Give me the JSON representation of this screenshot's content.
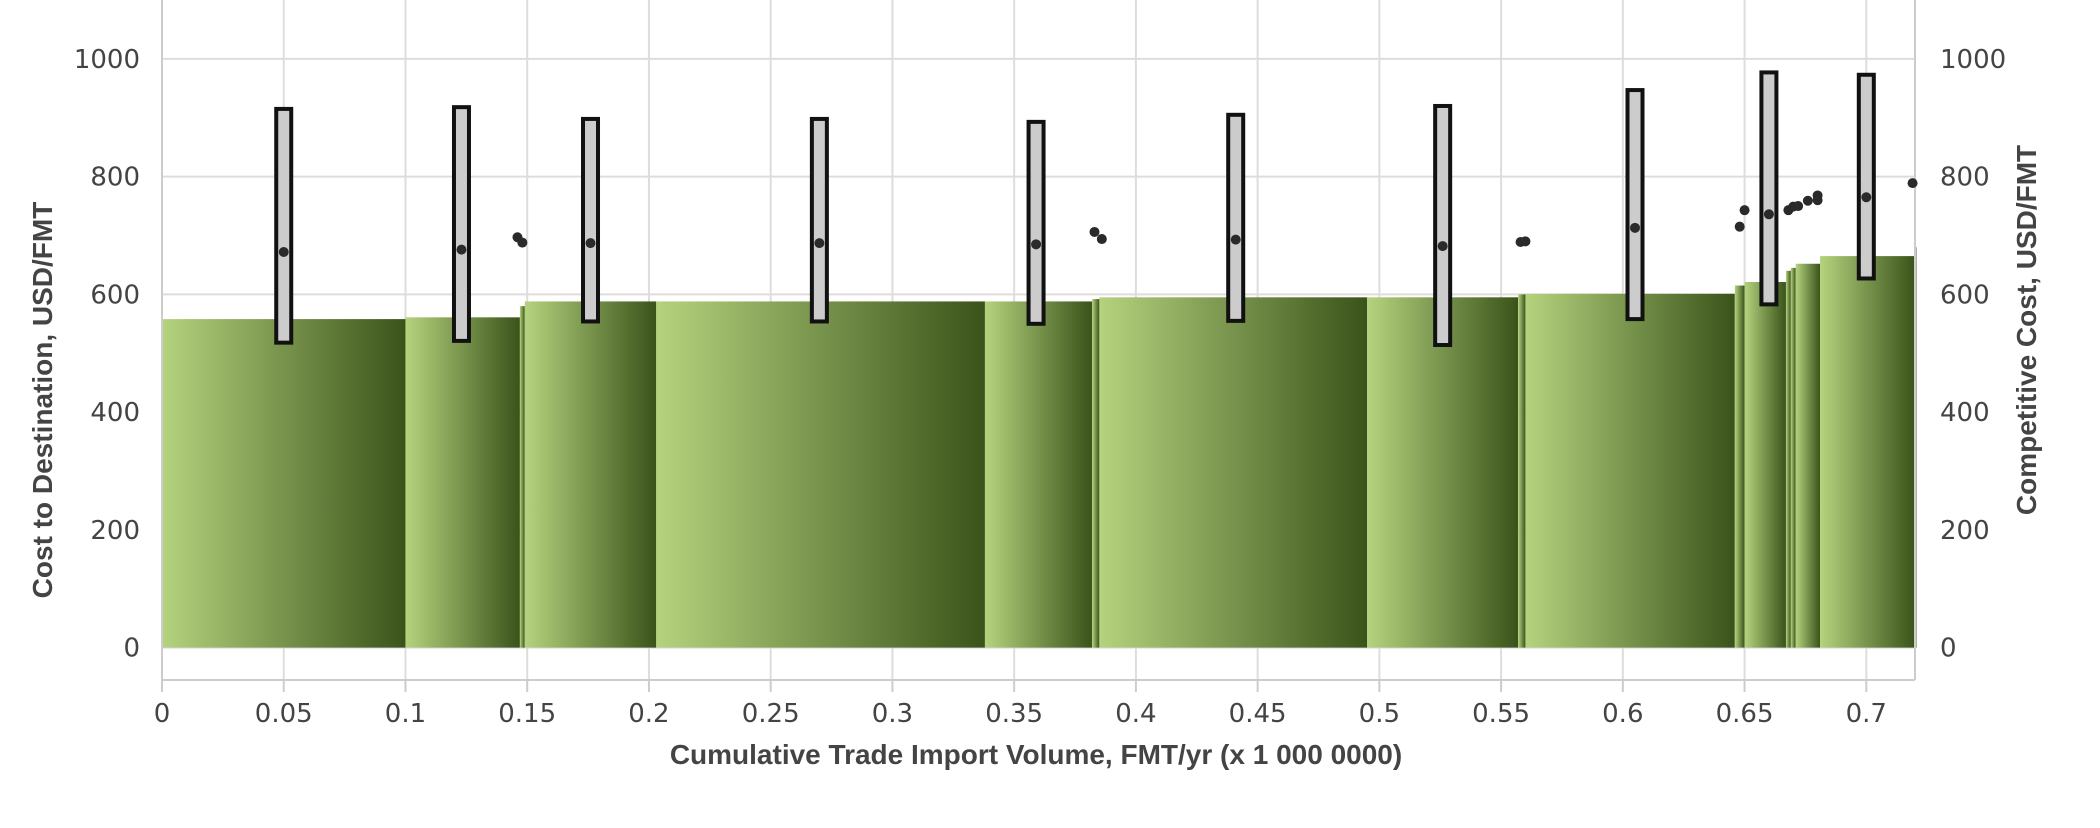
{
  "chart_data": {
    "type": "bar",
    "title": "",
    "xlabel": "Cumulative Trade Import Volume, FMT/yr (x 1 000 0000)",
    "ylabel": "Cost to Destination, USD/FMT",
    "y2label": "Competitive Cost,  USD/FMT",
    "xlim": [
      0,
      0.72
    ],
    "ylim": [
      -55,
      1100
    ],
    "x_ticks": [
      "0",
      "0.05",
      "0.1",
      "0.15",
      "0.2",
      "0.25",
      "0.3",
      "0.35",
      "0.4",
      "0.45",
      "0.5",
      "0.55",
      "0.6",
      "0.65",
      "0.7"
    ],
    "x_tick_values": [
      0,
      0.05,
      0.1,
      0.15,
      0.2,
      0.25,
      0.3,
      0.35,
      0.4,
      0.45,
      0.5,
      0.55,
      0.6,
      0.65,
      0.7
    ],
    "y_ticks": [
      "0",
      "200",
      "400",
      "600",
      "800",
      "1000"
    ],
    "y_tick_values": [
      0,
      200,
      400,
      600,
      800,
      1000
    ],
    "y2_ticks": [
      "0",
      "200",
      "400",
      "600",
      "800",
      "1000"
    ],
    "grid": true,
    "legend": "none",
    "colors": {
      "bar_light": "#b5d37e",
      "bar_dark": "#3a531a",
      "error_fill": "#cccccc",
      "error_stroke": "#111111",
      "point": "#2a2a2a",
      "grid": "#dddddd",
      "text": "#444444"
    },
    "bars": [
      {
        "x0": 0.0,
        "x1": 0.1,
        "y": 558
      },
      {
        "x0": 0.1,
        "x1": 0.147,
        "y": 561
      },
      {
        "x0": 0.147,
        "x1": 0.149,
        "y": 580
      },
      {
        "x0": 0.149,
        "x1": 0.203,
        "y": 588
      },
      {
        "x0": 0.203,
        "x1": 0.338,
        "y": 588
      },
      {
        "x0": 0.338,
        "x1": 0.382,
        "y": 588
      },
      {
        "x0": 0.382,
        "x1": 0.385,
        "y": 592
      },
      {
        "x0": 0.385,
        "x1": 0.495,
        "y": 595
      },
      {
        "x0": 0.495,
        "x1": 0.557,
        "y": 595
      },
      {
        "x0": 0.557,
        "x1": 0.56,
        "y": 600
      },
      {
        "x0": 0.56,
        "x1": 0.646,
        "y": 601
      },
      {
        "x0": 0.646,
        "x1": 0.65,
        "y": 615
      },
      {
        "x0": 0.65,
        "x1": 0.667,
        "y": 621
      },
      {
        "x0": 0.667,
        "x1": 0.669,
        "y": 640
      },
      {
        "x0": 0.669,
        "x1": 0.671,
        "y": 645
      },
      {
        "x0": 0.671,
        "x1": 0.681,
        "y": 652
      },
      {
        "x0": 0.681,
        "x1": 0.72,
        "y": 665
      },
      {
        "x0": 0.72,
        "x1": 0.722,
        "y": 680
      }
    ],
    "ranges": [
      {
        "x": 0.05,
        "low": 518,
        "high": 915,
        "mid": 672
      },
      {
        "x": 0.123,
        "low": 521,
        "high": 918,
        "mid": 676
      },
      {
        "x": 0.176,
        "low": 554,
        "high": 898,
        "mid": 687
      },
      {
        "x": 0.27,
        "low": 554,
        "high": 898,
        "mid": 687
      },
      {
        "x": 0.359,
        "low": 550,
        "high": 893,
        "mid": 685
      },
      {
        "x": 0.441,
        "low": 555,
        "high": 905,
        "mid": 693
      },
      {
        "x": 0.526,
        "low": 514,
        "high": 920,
        "mid": 682
      },
      {
        "x": 0.605,
        "low": 558,
        "high": 947,
        "mid": 713
      },
      {
        "x": 0.66,
        "low": 583,
        "high": 977,
        "mid": 736
      },
      {
        "x": 0.7,
        "low": 627,
        "high": 973,
        "mid": 765
      }
    ],
    "points": [
      {
        "x": 0.146,
        "y": 697
      },
      {
        "x": 0.148,
        "y": 688
      },
      {
        "x": 0.383,
        "y": 706
      },
      {
        "x": 0.386,
        "y": 694
      },
      {
        "x": 0.558,
        "y": 689
      },
      {
        "x": 0.56,
        "y": 690
      },
      {
        "x": 0.648,
        "y": 715
      },
      {
        "x": 0.65,
        "y": 743
      },
      {
        "x": 0.668,
        "y": 743
      },
      {
        "x": 0.67,
        "y": 749
      },
      {
        "x": 0.672,
        "y": 750
      },
      {
        "x": 0.676,
        "y": 759
      },
      {
        "x": 0.68,
        "y": 760
      },
      {
        "x": 0.68,
        "y": 768
      },
      {
        "x": 0.719,
        "y": 789
      }
    ]
  }
}
